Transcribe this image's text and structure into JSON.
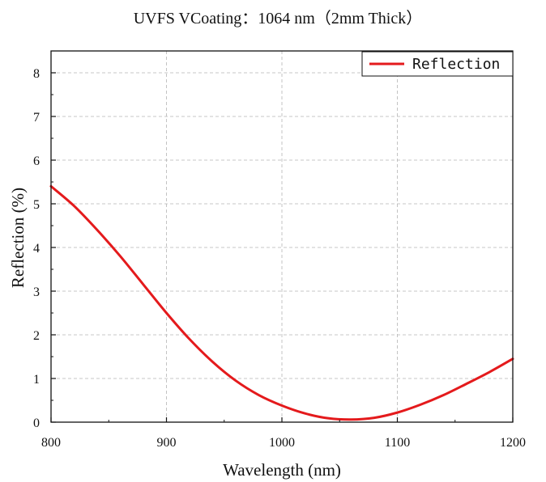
{
  "chart_data": {
    "type": "line",
    "title": "UVFS VCoating：1064 nm（2mm Thick）",
    "xlabel": "Wavelength (nm)",
    "ylabel": "Reflection (%)",
    "xlim": [
      800,
      1200
    ],
    "ylim": [
      0,
      8.5
    ],
    "xticks": [
      800,
      900,
      1000,
      1100,
      1200
    ],
    "yticks": [
      0,
      1,
      2,
      3,
      4,
      5,
      6,
      7,
      8
    ],
    "grid": true,
    "legend_position": "top-right",
    "series": [
      {
        "name": "Reflection",
        "color": "#e41a1c",
        "x": [
          800,
          820,
          840,
          860,
          880,
          900,
          920,
          940,
          960,
          980,
          1000,
          1020,
          1040,
          1060,
          1080,
          1100,
          1120,
          1140,
          1160,
          1180,
          1200
        ],
        "y": [
          5.4,
          4.95,
          4.4,
          3.8,
          3.15,
          2.5,
          1.9,
          1.38,
          0.95,
          0.62,
          0.38,
          0.2,
          0.09,
          0.06,
          0.1,
          0.22,
          0.4,
          0.62,
          0.88,
          1.15,
          1.45
        ]
      }
    ]
  }
}
